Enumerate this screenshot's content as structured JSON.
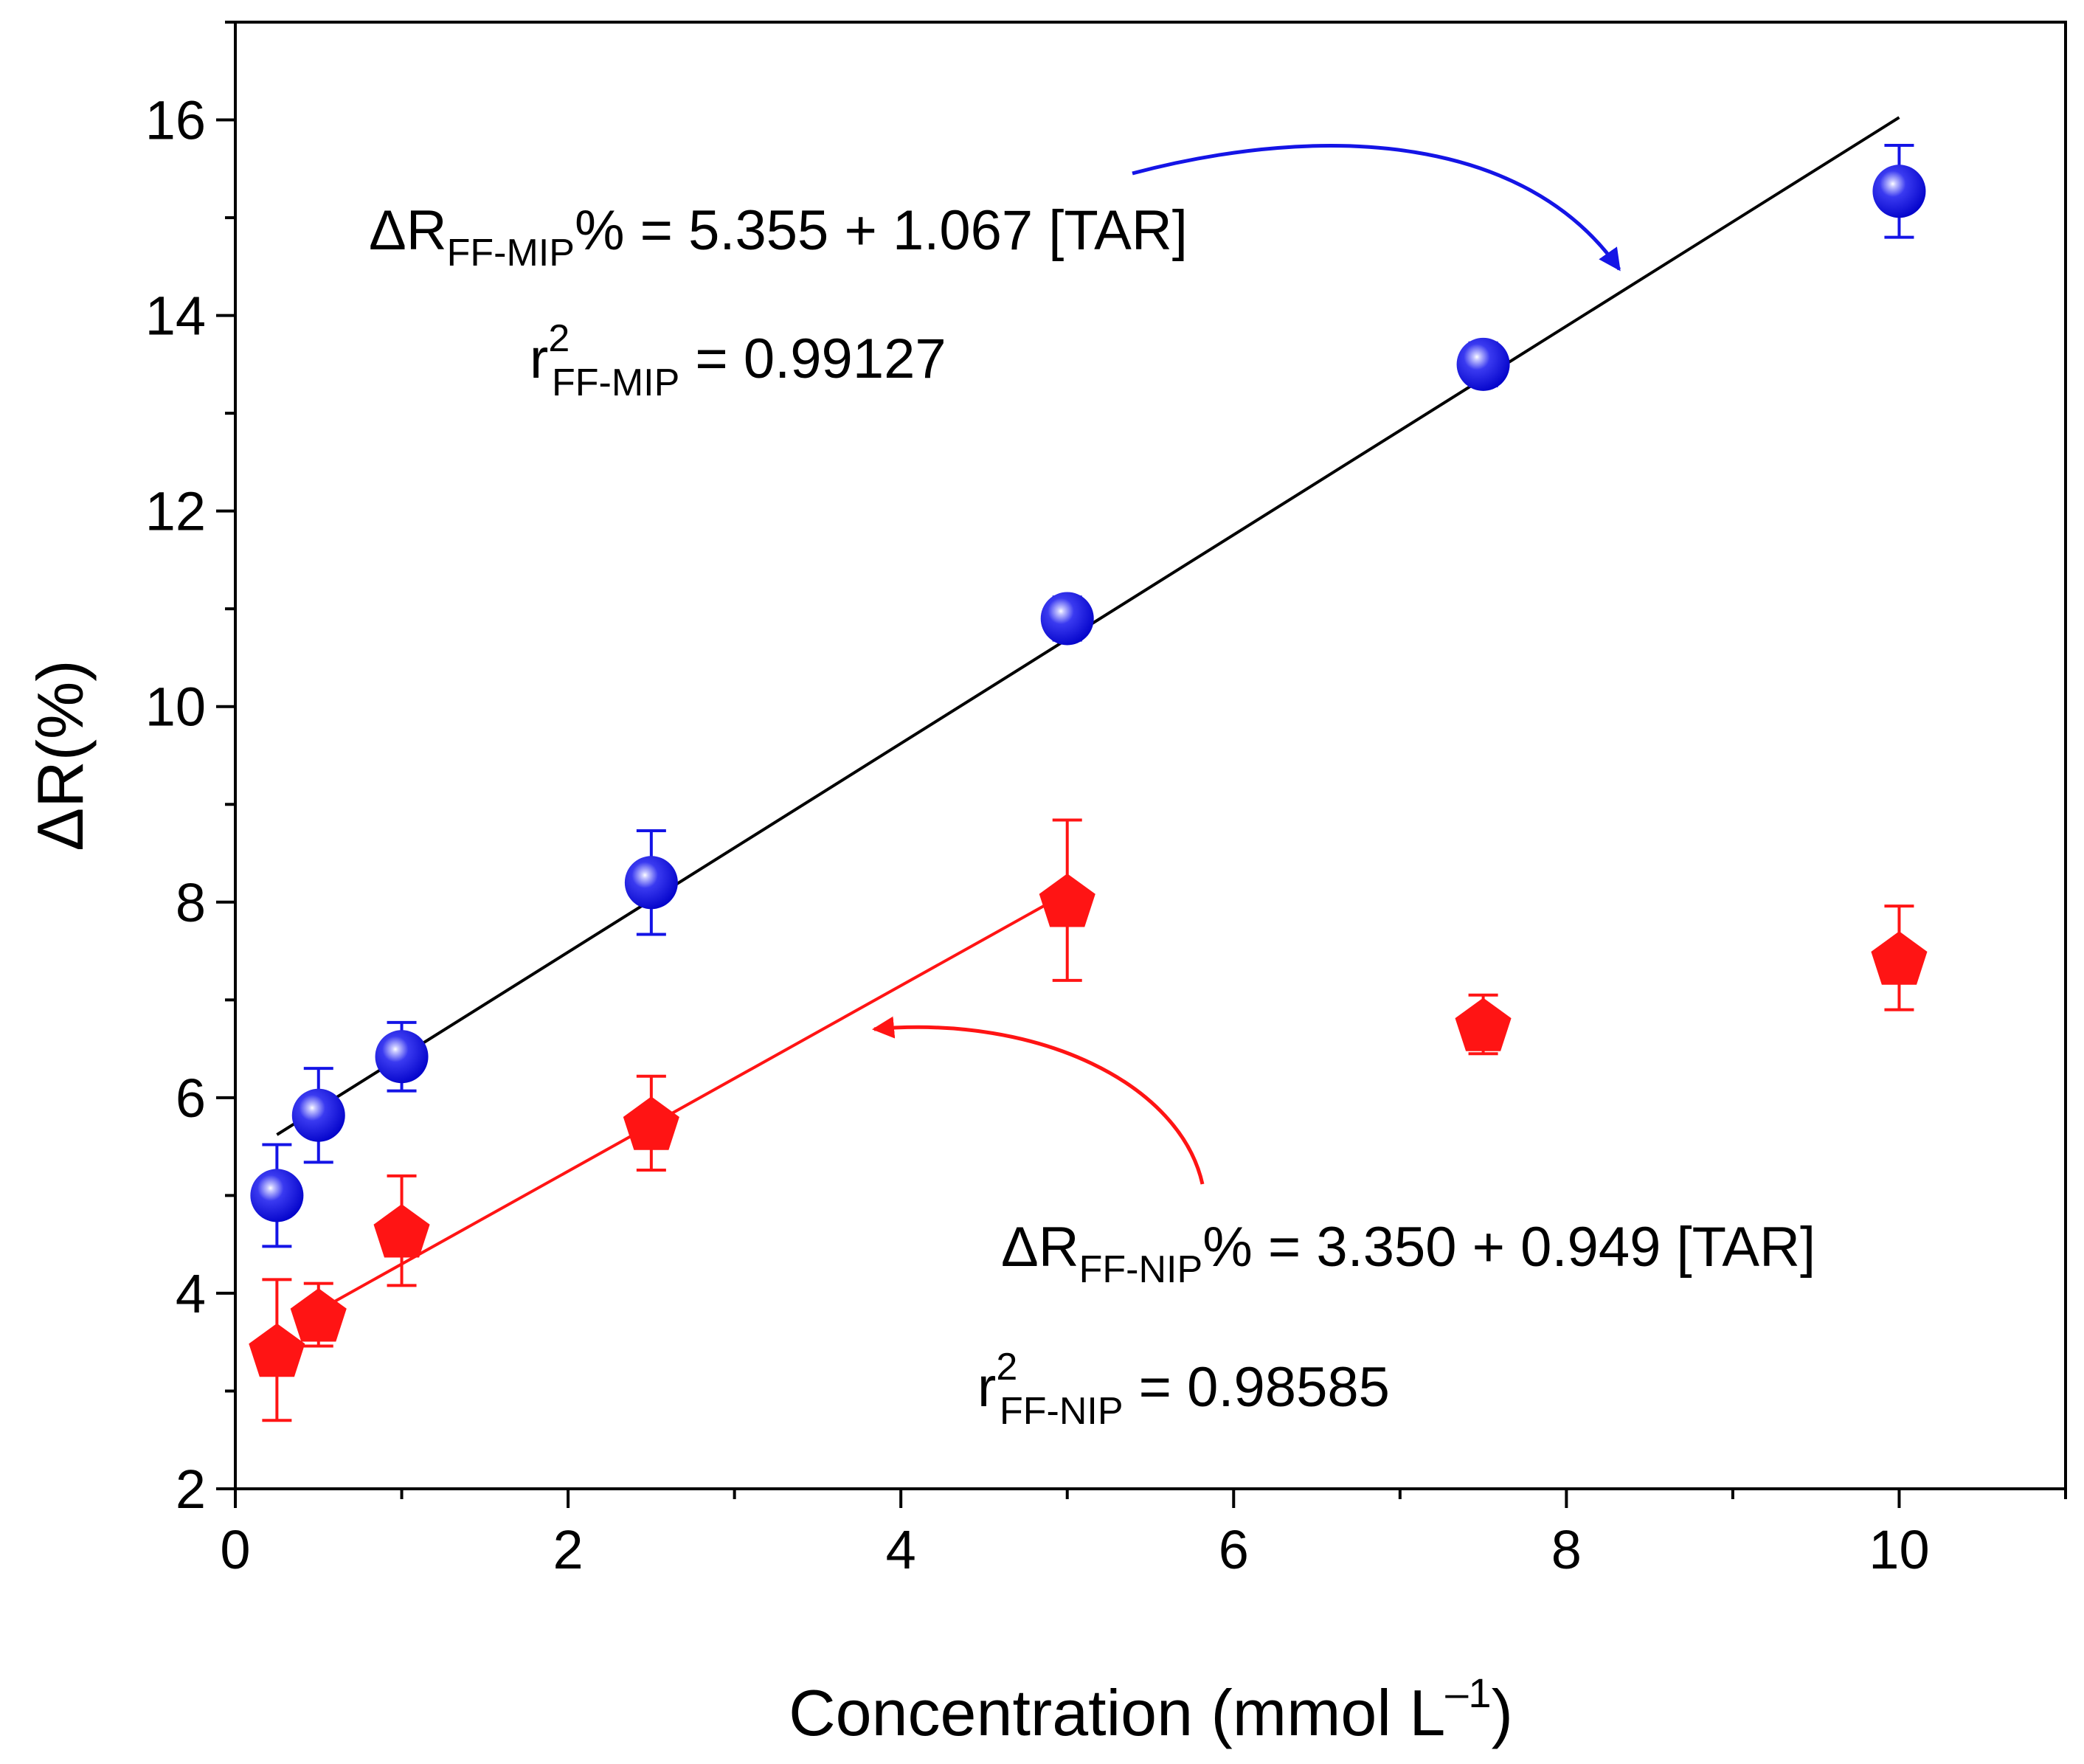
{
  "chart_data": {
    "type": "scatter",
    "xlabel": "Concentration (mmol L",
    "xlabel_sup": "–1",
    "xlabel_close": ")",
    "ylabel": "ΔR(%)",
    "xlim": [
      0,
      11
    ],
    "ylim": [
      2,
      17
    ],
    "x_ticks": [
      0,
      2,
      4,
      6,
      8,
      10
    ],
    "y_ticks": [
      2,
      4,
      6,
      8,
      10,
      12,
      14,
      16
    ],
    "series": [
      {
        "name": "FF-MIP",
        "marker": "sphere",
        "color": "#1414e6",
        "x": [
          0.25,
          0.5,
          1.0,
          2.5,
          5.0,
          7.5,
          10.0
        ],
        "y": [
          5.0,
          5.82,
          6.42,
          8.2,
          10.9,
          13.5,
          15.27
        ],
        "err": [
          0.52,
          0.48,
          0.35,
          0.53,
          0.22,
          0.22,
          0.47
        ],
        "fit": {
          "x_range": [
            0.25,
            10.0
          ],
          "intercept": 5.355,
          "slope": 1.067,
          "color": "#000000"
        }
      },
      {
        "name": "FF-NIP",
        "marker": "pentagon",
        "color": "#ff1414",
        "x": [
          0.25,
          0.5,
          1.0,
          2.5,
          5.0,
          7.5,
          10.0
        ],
        "y": [
          3.42,
          3.78,
          4.64,
          5.74,
          8.02,
          6.75,
          7.43
        ],
        "err": [
          0.72,
          0.32,
          0.56,
          0.48,
          0.82,
          0.3,
          0.53
        ],
        "fit": {
          "x_range": [
            0.5,
            5.0
          ],
          "intercept": 3.35,
          "slope": 0.949,
          "color": "#ff1414"
        }
      }
    ],
    "annotations": {
      "mip_eq_prefix": "ΔR",
      "mip_eq_sub": "FF-MIP",
      "mip_eq_rest": "% = 5.355 + 1.067 [TAR]",
      "mip_r2_base": "r",
      "mip_r2_sup": "2",
      "mip_r2_sub": "FF-MIP",
      "mip_r2_rest": " = 0.99127",
      "nip_eq_prefix": "ΔR",
      "nip_eq_sub": "FF-NIP",
      "nip_eq_rest": "% = 3.350 + 0.949 [TAR]",
      "nip_r2_base": "r",
      "nip_r2_sup": "2",
      "nip_r2_sub": "FF-NIP",
      "nip_r2_rest": " = 0.98585"
    }
  }
}
